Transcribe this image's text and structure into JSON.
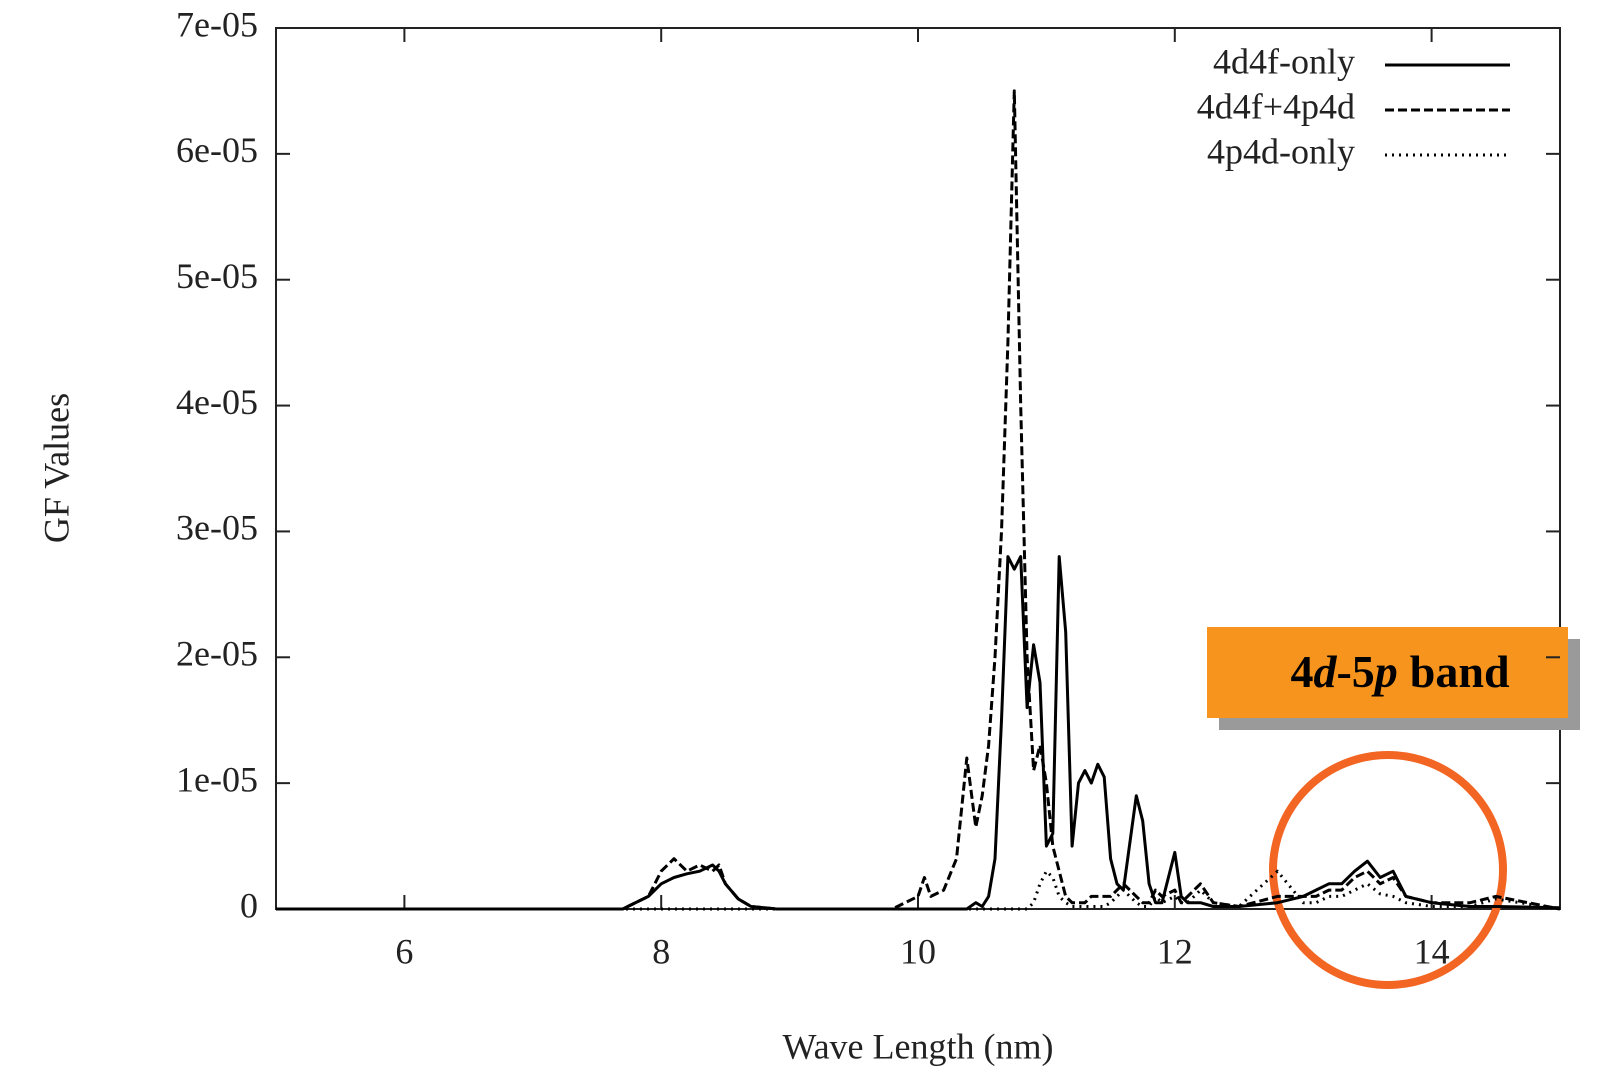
{
  "chart_data": {
    "type": "line",
    "xlabel": "Wave Length (nm)",
    "ylabel": "GF Values",
    "annotation": {
      "parts": [
        "4",
        "d",
        "-5",
        "p",
        "band"
      ]
    },
    "x": [
      5,
      7.7,
      7.9,
      8.0,
      8.1,
      8.2,
      8.3,
      8.4,
      8.45,
      8.5,
      8.6,
      8.7,
      8.9,
      9.8,
      10.0,
      10.05,
      10.1,
      10.2,
      10.3,
      10.38,
      10.45,
      10.5,
      10.55,
      10.6,
      10.65,
      10.7,
      10.75,
      10.8,
      10.85,
      10.9,
      10.95,
      11.0,
      11.05,
      11.1,
      11.15,
      11.2,
      11.25,
      11.3,
      11.35,
      11.4,
      11.45,
      11.5,
      11.55,
      11.6,
      11.7,
      11.75,
      11.8,
      11.85,
      11.9,
      12.0,
      12.05,
      12.1,
      12.2,
      12.3,
      12.5,
      12.8,
      13.0,
      13.1,
      13.2,
      13.3,
      13.4,
      13.5,
      13.6,
      13.7,
      13.8,
      14.0,
      14.3,
      14.5,
      15
    ],
    "series": [
      {
        "name": "4d4f-only",
        "color": "#000000",
        "linestyle": "solid",
        "values": [
          0,
          0,
          1e-06,
          2e-06,
          2.5e-06,
          2.8e-06,
          3e-06,
          3.5e-06,
          3e-06,
          2e-06,
          8e-07,
          2e-07,
          0,
          0,
          0,
          0,
          0,
          0,
          0,
          0,
          5e-07,
          2e-07,
          1e-06,
          4e-06,
          1.5e-05,
          2.8e-05,
          2.7e-05,
          2.8e-05,
          1.6e-05,
          2.1e-05,
          1.8e-05,
          5e-06,
          6e-06,
          2.8e-05,
          2.2e-05,
          5e-06,
          1e-05,
          1.1e-05,
          1e-05,
          1.15e-05,
          1.05e-05,
          4e-06,
          2e-06,
          1.5e-06,
          9e-06,
          7e-06,
          2e-06,
          5e-07,
          5e-07,
          4.5e-06,
          1e-06,
          5e-07,
          5e-07,
          2e-07,
          2e-07,
          5e-07,
          1e-06,
          1.5e-06,
          2e-06,
          2e-06,
          3e-06,
          3.8e-06,
          2.5e-06,
          3e-06,
          1e-06,
          5e-07,
          2e-07,
          2e-07,
          1e-07
        ]
      },
      {
        "name": "4d4f+4p4d",
        "color": "#000000",
        "linestyle": "dashed",
        "values": [
          0,
          0,
          1e-06,
          3e-06,
          4e-06,
          3e-06,
          3.5e-06,
          3e-06,
          3.5e-06,
          2e-06,
          8e-07,
          2e-07,
          0,
          0,
          1e-06,
          2.5e-06,
          1e-06,
          1.5e-06,
          4e-06,
          1.2e-05,
          6.5e-06,
          9e-06,
          1.3e-05,
          2e-05,
          3e-05,
          4.5e-05,
          6.5e-05,
          4e-05,
          2e-05,
          1.1e-05,
          1.3e-05,
          1e-05,
          5e-06,
          3e-06,
          1e-06,
          5e-07,
          5e-07,
          5e-07,
          1e-06,
          1e-06,
          1e-06,
          1e-06,
          1.5e-06,
          2e-06,
          1e-06,
          5e-07,
          5e-07,
          1.5e-06,
          1e-06,
          1.5e-06,
          5e-07,
          1e-06,
          2e-06,
          5e-07,
          2e-07,
          1e-06,
          1e-06,
          1e-06,
          1.5e-06,
          1.5e-06,
          2.5e-06,
          3e-06,
          2e-06,
          2.5e-06,
          1e-06,
          5e-07,
          5e-07,
          1e-06,
          0
        ]
      },
      {
        "name": "4p4d-only",
        "color": "#000000",
        "linestyle": "dotted",
        "values": [
          0,
          0,
          0,
          0,
          0,
          0,
          0,
          0,
          0,
          0,
          0,
          0,
          0,
          0,
          0,
          0,
          0,
          0,
          0,
          0,
          0,
          0,
          0,
          0,
          0,
          0,
          0,
          0,
          0,
          5e-07,
          2e-06,
          3e-06,
          2.5e-06,
          1e-06,
          5e-07,
          2e-07,
          2e-07,
          2e-07,
          2e-07,
          2e-07,
          2e-07,
          5e-07,
          1e-06,
          1.5e-06,
          5e-07,
          2e-07,
          2e-07,
          1e-06,
          5e-07,
          1e-06,
          5e-07,
          5e-07,
          1.5e-06,
          5e-07,
          2e-07,
          3e-06,
          5e-07,
          5e-07,
          1e-06,
          1e-06,
          1.5e-06,
          2e-06,
          1.2e-06,
          1e-06,
          5e-07,
          2e-07,
          2e-07,
          8e-07,
          0
        ]
      }
    ],
    "xlim": [
      5,
      15
    ],
    "xticks": [
      6,
      8,
      10,
      12,
      14
    ],
    "ylim": [
      0,
      7e-05
    ],
    "yticks": [
      0,
      {
        "value": 1e-05,
        "label": "1e-05"
      },
      {
        "value": 2e-05,
        "label": "2e-05"
      },
      {
        "value": 3e-05,
        "label": "3e-05"
      },
      {
        "value": 4e-05,
        "label": "4e-05"
      },
      {
        "value": 5e-05,
        "label": "5e-05"
      },
      {
        "value": 6e-05,
        "label": "6e-05"
      },
      {
        "value": 7e-05,
        "label": "7e-05"
      }
    ],
    "legend": "top-right",
    "grid": false
  }
}
